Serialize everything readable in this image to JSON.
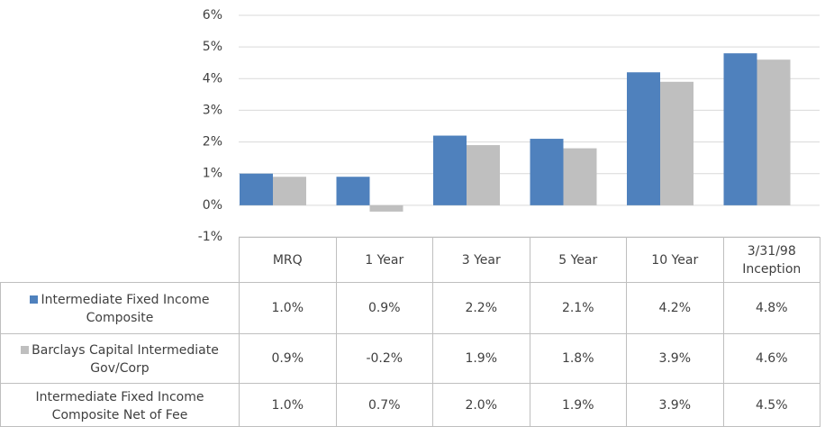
{
  "chart_data": {
    "type": "bar",
    "categories": [
      "MRQ",
      "1 Year",
      "3 Year",
      "5 Year",
      "10 Year",
      "3/31/98 Inception"
    ],
    "series": [
      {
        "name": "Intermediate Fixed Income Composite",
        "color": "#4f81bd",
        "values": [
          1.0,
          0.9,
          2.2,
          2.1,
          4.2,
          4.8
        ],
        "value_labels": [
          "1.0%",
          "0.9%",
          "2.2%",
          "2.1%",
          "4.2%",
          "4.8%"
        ]
      },
      {
        "name": "Barclays Capital Intermediate Gov/Corp",
        "color": "#bfbfbf",
        "values": [
          0.9,
          -0.2,
          1.9,
          1.8,
          3.9,
          4.6
        ],
        "value_labels": [
          "0.9%",
          "-0.2%",
          "1.9%",
          "1.8%",
          "3.9%",
          "4.6%"
        ]
      },
      {
        "name": "Intermediate Fixed Income Composite Net of Fee",
        "values": [
          1.0,
          0.7,
          2.0,
          1.9,
          3.9,
          4.5
        ],
        "value_labels": [
          "1.0%",
          "0.7%",
          "2.0%",
          "1.9%",
          "3.9%",
          "4.5%"
        ]
      }
    ],
    "ylim": [
      -1,
      6
    ],
    "yticks": [
      {
        "value": -1,
        "label": "-1%"
      },
      {
        "value": 0,
        "label": "0%"
      },
      {
        "value": 1,
        "label": "1%"
      },
      {
        "value": 2,
        "label": "2%"
      },
      {
        "value": 3,
        "label": "3%"
      },
      {
        "value": 4,
        "label": "4%"
      },
      {
        "value": 5,
        "label": "5%"
      },
      {
        "value": 6,
        "label": "6%"
      }
    ],
    "grid": true
  }
}
